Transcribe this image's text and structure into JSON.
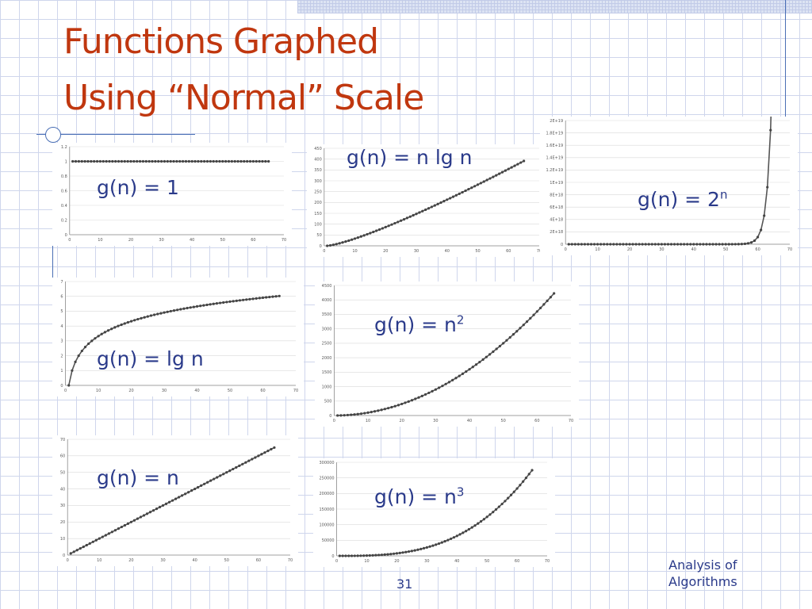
{
  "slide": {
    "title_line1": "Functions Graphed",
    "title_line2": "Using “Normal” Scale",
    "page_number": "31",
    "footer_line1": "Analysis of",
    "footer_line2": "Algorithms"
  },
  "colors": {
    "title": "#c0370f",
    "label": "#2a3a8a",
    "series": "#555555",
    "accent_line": "#4a6fb5"
  },
  "chart_data": [
    {
      "id": "const",
      "type": "line",
      "label_main": "g(n) = 1",
      "label_sup": "",
      "function": "1",
      "x_range": [
        1,
        65
      ],
      "xticks": [
        "0",
        "10",
        "20",
        "30",
        "40",
        "50",
        "60",
        "70"
      ],
      "xlim": [
        0,
        70
      ],
      "yticks": [
        "0",
        "0.2",
        "0.4",
        "0.6",
        "0.8",
        "1",
        "1.2"
      ],
      "ylim": [
        0,
        1.2
      ]
    },
    {
      "id": "nlgn",
      "type": "line",
      "label_main": "g(n) = n lg n",
      "label_sup": "",
      "function": "n*log2(n)",
      "x_range": [
        1,
        65
      ],
      "xticks": [
        "0",
        "10",
        "20",
        "30",
        "40",
        "50",
        "60",
        "70"
      ],
      "xlim": [
        0,
        70
      ],
      "yticks": [
        "0",
        "50",
        "100",
        "150",
        "200",
        "250",
        "300",
        "350",
        "400",
        "450"
      ],
      "ylim": [
        0,
        450
      ]
    },
    {
      "id": "exp",
      "type": "line",
      "label_main": "g(n) = 2",
      "label_sup": "n",
      "function": "2^n",
      "x_range": [
        1,
        65
      ],
      "xticks": [
        "0",
        "10",
        "20",
        "30",
        "40",
        "50",
        "60",
        "70"
      ],
      "xlim": [
        0,
        70
      ],
      "yticks": [
        "0",
        "2E+18",
        "4E+18",
        "6E+18",
        "8E+18",
        "1E+19",
        "1.2E+19",
        "1.4E+19",
        "1.6E+19",
        "1.8E+19",
        "2E+19"
      ],
      "ylim": [
        0,
        2e+19
      ]
    },
    {
      "id": "lgn",
      "type": "line",
      "label_main": "g(n) = lg n",
      "label_sup": "",
      "function": "log2(n)",
      "x_range": [
        1,
        65
      ],
      "xticks": [
        "0",
        "10",
        "20",
        "30",
        "40",
        "50",
        "60",
        "70"
      ],
      "xlim": [
        0,
        70
      ],
      "yticks": [
        "0",
        "1",
        "2",
        "3",
        "4",
        "5",
        "6",
        "7"
      ],
      "ylim": [
        0,
        7
      ]
    },
    {
      "id": "sq",
      "type": "line",
      "label_main": "g(n) = n",
      "label_sup": "2",
      "function": "n^2",
      "x_range": [
        1,
        65
      ],
      "xticks": [
        "0",
        "10",
        "20",
        "30",
        "40",
        "50",
        "60",
        "70"
      ],
      "xlim": [
        0,
        70
      ],
      "yticks": [
        "0",
        "500",
        "1000",
        "1500",
        "2000",
        "2500",
        "3000",
        "3500",
        "4000",
        "4500"
      ],
      "ylim": [
        0,
        4500
      ]
    },
    {
      "id": "lin",
      "type": "line",
      "label_main": "g(n) = n",
      "label_sup": "",
      "function": "n",
      "x_range": [
        1,
        65
      ],
      "xticks": [
        "0",
        "10",
        "20",
        "30",
        "40",
        "50",
        "60",
        "70"
      ],
      "xlim": [
        0,
        70
      ],
      "yticks": [
        "0",
        "10",
        "20",
        "30",
        "40",
        "50",
        "60",
        "70"
      ],
      "ylim": [
        0,
        70
      ]
    },
    {
      "id": "cube",
      "type": "line",
      "label_main": "g(n) = n",
      "label_sup": "3",
      "function": "n^3",
      "x_range": [
        1,
        65
      ],
      "xticks": [
        "0",
        "10",
        "20",
        "30",
        "40",
        "50",
        "60",
        "70"
      ],
      "xlim": [
        0,
        70
      ],
      "yticks": [
        "0",
        "50000",
        "100000",
        "150000",
        "200000",
        "250000",
        "300000"
      ],
      "ylim": [
        0,
        300000
      ]
    }
  ]
}
